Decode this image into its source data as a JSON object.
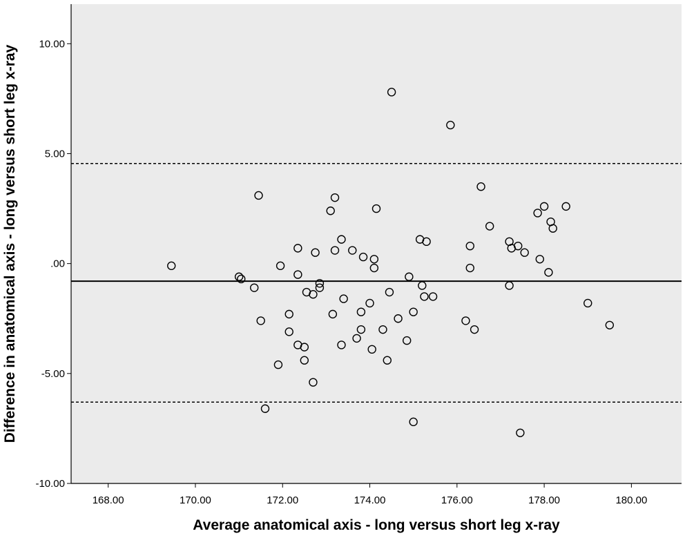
{
  "chart_data": {
    "type": "scatter",
    "title": "",
    "xlabel": "Average anatomical axis - long versus short leg x-ray",
    "ylabel": "Difference in anatomical axis - long versus short leg x-ray",
    "xlim": [
      167.15,
      181.15
    ],
    "ylim": [
      -10,
      11.8
    ],
    "x_ticks": [
      {
        "value": 168,
        "label": "168.00"
      },
      {
        "value": 170,
        "label": "170.00"
      },
      {
        "value": 172,
        "label": "172.00"
      },
      {
        "value": 174,
        "label": "174.00"
      },
      {
        "value": 176,
        "label": "176.00"
      },
      {
        "value": 178,
        "label": "178.00"
      },
      {
        "value": 180,
        "label": "180.00"
      }
    ],
    "y_ticks": [
      {
        "value": 10,
        "label": "10.00"
      },
      {
        "value": 5,
        "label": "5.00"
      },
      {
        "value": 0,
        "label": ".00"
      },
      {
        "value": -5,
        "label": "-5.00"
      },
      {
        "value": -10,
        "label": "-10.00"
      }
    ],
    "grid": false,
    "legend": "none",
    "plot_background": "#ebebeb",
    "marker_color": "#000000",
    "reference_lines": [
      {
        "kind": "mean",
        "y": -0.8,
        "style": "solid"
      },
      {
        "kind": "upper-limit",
        "y": 4.55,
        "style": "dashed"
      },
      {
        "kind": "lower-limit",
        "y": -6.3,
        "style": "dashed"
      }
    ],
    "points": [
      {
        "x": 169.45,
        "y": -0.1
      },
      {
        "x": 171.0,
        "y": -0.6
      },
      {
        "x": 171.05,
        "y": -0.7
      },
      {
        "x": 171.35,
        "y": -1.1
      },
      {
        "x": 171.45,
        "y": 3.1
      },
      {
        "x": 171.5,
        "y": -2.6
      },
      {
        "x": 171.6,
        "y": -6.6
      },
      {
        "x": 171.9,
        "y": -4.6
      },
      {
        "x": 171.95,
        "y": -0.1
      },
      {
        "x": 172.15,
        "y": -2.3
      },
      {
        "x": 172.15,
        "y": -3.1
      },
      {
        "x": 172.35,
        "y": 0.7
      },
      {
        "x": 172.35,
        "y": -0.5
      },
      {
        "x": 172.35,
        "y": -3.7
      },
      {
        "x": 172.5,
        "y": -3.8
      },
      {
        "x": 172.5,
        "y": -4.4
      },
      {
        "x": 172.55,
        "y": -1.3
      },
      {
        "x": 172.7,
        "y": -1.4
      },
      {
        "x": 172.7,
        "y": -5.4
      },
      {
        "x": 172.75,
        "y": 0.5
      },
      {
        "x": 172.85,
        "y": -0.9
      },
      {
        "x": 172.85,
        "y": -1.1
      },
      {
        "x": 173.1,
        "y": 2.4
      },
      {
        "x": 173.15,
        "y": -2.3
      },
      {
        "x": 173.2,
        "y": 3.0
      },
      {
        "x": 173.2,
        "y": 0.6
      },
      {
        "x": 173.35,
        "y": 1.1
      },
      {
        "x": 173.35,
        "y": -3.7
      },
      {
        "x": 173.4,
        "y": -1.6
      },
      {
        "x": 173.6,
        "y": 0.6
      },
      {
        "x": 173.7,
        "y": -3.4
      },
      {
        "x": 173.8,
        "y": -2.2
      },
      {
        "x": 173.8,
        "y": -3.0
      },
      {
        "x": 173.85,
        "y": 0.3
      },
      {
        "x": 174.0,
        "y": -1.8
      },
      {
        "x": 174.05,
        "y": -3.9
      },
      {
        "x": 174.1,
        "y": 0.2
      },
      {
        "x": 174.1,
        "y": -0.2
      },
      {
        "x": 174.15,
        "y": 2.5
      },
      {
        "x": 174.3,
        "y": -3.0
      },
      {
        "x": 174.4,
        "y": -4.4
      },
      {
        "x": 174.45,
        "y": -1.3
      },
      {
        "x": 174.5,
        "y": 7.8
      },
      {
        "x": 174.65,
        "y": -2.5
      },
      {
        "x": 174.85,
        "y": -3.5
      },
      {
        "x": 174.9,
        "y": -0.6
      },
      {
        "x": 175.0,
        "y": -2.2
      },
      {
        "x": 175.0,
        "y": -7.2
      },
      {
        "x": 175.15,
        "y": 1.1
      },
      {
        "x": 175.2,
        "y": -1.0
      },
      {
        "x": 175.25,
        "y": -1.5
      },
      {
        "x": 175.3,
        "y": 1.0
      },
      {
        "x": 175.45,
        "y": -1.5
      },
      {
        "x": 175.85,
        "y": 6.3
      },
      {
        "x": 176.2,
        "y": -2.6
      },
      {
        "x": 176.3,
        "y": 0.8
      },
      {
        "x": 176.3,
        "y": -0.2
      },
      {
        "x": 176.4,
        "y": -3.0
      },
      {
        "x": 176.55,
        "y": 3.5
      },
      {
        "x": 176.75,
        "y": 1.7
      },
      {
        "x": 177.2,
        "y": 1.0
      },
      {
        "x": 177.2,
        "y": -1.0
      },
      {
        "x": 177.25,
        "y": 0.7
      },
      {
        "x": 177.4,
        "y": 0.8
      },
      {
        "x": 177.45,
        "y": -7.7
      },
      {
        "x": 177.55,
        "y": 0.5
      },
      {
        "x": 177.85,
        "y": 2.3
      },
      {
        "x": 177.9,
        "y": 0.2
      },
      {
        "x": 178.0,
        "y": 2.6
      },
      {
        "x": 178.1,
        "y": -0.4
      },
      {
        "x": 178.15,
        "y": 1.9
      },
      {
        "x": 178.2,
        "y": 1.6
      },
      {
        "x": 178.5,
        "y": 2.6
      },
      {
        "x": 179.0,
        "y": -1.8
      },
      {
        "x": 179.5,
        "y": -2.8
      }
    ]
  }
}
